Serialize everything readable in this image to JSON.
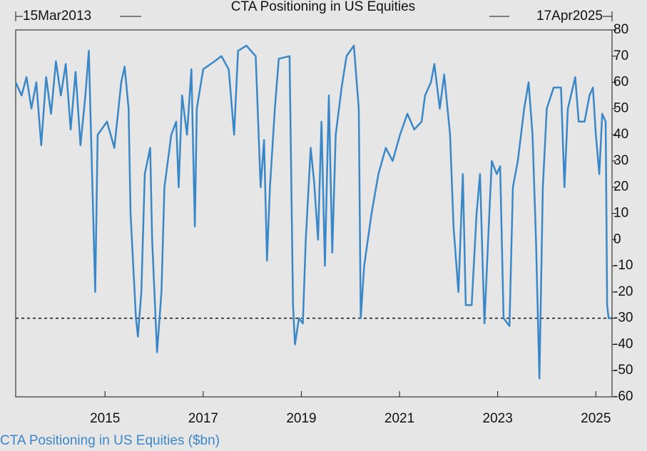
{
  "chart_data": {
    "type": "line",
    "title": "CTA Positioning in US Equities",
    "start_label": "15Mar2013",
    "end_label": "17Apr2025",
    "legend_label": "CTA Positioning in US Equities ($bn)",
    "xlim": [
      2013.18,
      2025.33
    ],
    "xticks": [
      2015,
      2017,
      2019,
      2021,
      2023,
      2025
    ],
    "ylim": [
      -60,
      80
    ],
    "yticks": [
      -60,
      -50,
      -40,
      -30,
      -20,
      -10,
      0,
      10,
      20,
      30,
      40,
      50,
      60,
      70,
      80
    ],
    "reference_line": -30,
    "series": [
      {
        "name": "CTA Positioning in US Equities ($bn)",
        "color": "#3a87c8",
        "x": [
          2013.18,
          2013.3,
          2013.4,
          2013.5,
          2013.6,
          2013.7,
          2013.8,
          2013.9,
          2014.0,
          2014.1,
          2014.2,
          2014.3,
          2014.4,
          2014.5,
          2014.6,
          2014.67,
          2014.8,
          2014.85,
          2015.04,
          2015.19,
          2015.33,
          2015.4,
          2015.48,
          2015.52,
          2015.63,
          2015.67,
          2015.74,
          2015.81,
          2015.92,
          2015.96,
          2016.06,
          2016.15,
          2016.21,
          2016.35,
          2016.45,
          2016.5,
          2016.57,
          2016.67,
          2016.76,
          2016.83,
          2016.87,
          2017.0,
          2017.23,
          2017.37,
          2017.52,
          2017.63,
          2017.71,
          2017.88,
          2018.07,
          2018.17,
          2018.24,
          2018.3,
          2018.36,
          2018.46,
          2018.54,
          2018.76,
          2018.83,
          2018.87,
          2018.95,
          2019.03,
          2019.09,
          2019.19,
          2019.26,
          2019.34,
          2019.41,
          2019.48,
          2019.56,
          2019.63,
          2019.7,
          2019.82,
          2019.92,
          2020.07,
          2020.17,
          2020.21,
          2020.28,
          2020.43,
          2020.57,
          2020.72,
          2020.86,
          2021.01,
          2021.16,
          2021.3,
          2021.45,
          2021.52,
          2021.64,
          2021.71,
          2021.82,
          2021.91,
          2022.03,
          2022.1,
          2022.2,
          2022.29,
          2022.35,
          2022.47,
          2022.57,
          2022.64,
          2022.73,
          2022.83,
          2022.88,
          2022.98,
          2023.05,
          2023.12,
          2023.24,
          2023.31,
          2023.41,
          2023.54,
          2023.63,
          2023.71,
          2023.78,
          2023.85,
          2023.92,
          2024.0,
          2024.14,
          2024.29,
          2024.36,
          2024.43,
          2024.58,
          2024.65,
          2024.77,
          2024.87,
          2024.94,
          2025.0,
          2025.07,
          2025.13,
          2025.2,
          2025.23,
          2025.26,
          2025.31
        ],
        "values": [
          60,
          55,
          62,
          50,
          60,
          36,
          62,
          48,
          68,
          55,
          67,
          42,
          64,
          36,
          55,
          72,
          -20,
          40,
          45,
          35,
          60,
          66,
          50,
          10,
          -30,
          -37,
          -20,
          25,
          35,
          0,
          -43,
          -20,
          20,
          40,
          45,
          20,
          55,
          40,
          65,
          5,
          50,
          65,
          68,
          70,
          65,
          40,
          72,
          74,
          70,
          20,
          38,
          -8,
          20,
          50,
          69,
          70,
          -25,
          -40,
          -30,
          -32,
          0,
          35,
          22,
          0,
          45,
          -10,
          55,
          -5,
          40,
          58,
          70,
          74,
          50,
          -30,
          -10,
          10,
          25,
          35,
          30,
          40,
          48,
          42,
          45,
          55,
          60,
          67,
          50,
          63,
          40,
          5,
          -20,
          25,
          -25,
          -25,
          10,
          25,
          -32,
          10,
          30,
          25,
          28,
          -30,
          -33,
          20,
          30,
          50,
          60,
          40,
          0,
          -53,
          20,
          50,
          58,
          58,
          20,
          50,
          62,
          45,
          45,
          55,
          58,
          40,
          25,
          48,
          45,
          -25,
          -30,
          -30
        ]
      }
    ]
  }
}
